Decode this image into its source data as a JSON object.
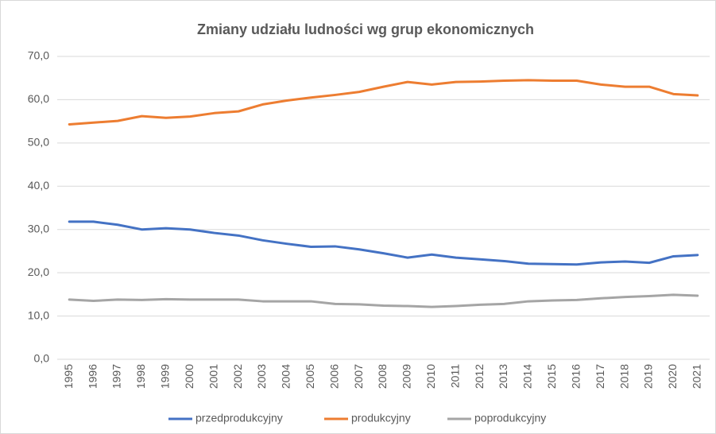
{
  "chart_data": {
    "type": "line",
    "title": "Zmiany udziału ludności wg grup ekonomicznych",
    "categories": [
      "1995",
      "1996",
      "1997",
      "1998",
      "1999",
      "2000",
      "2001",
      "2002",
      "2003",
      "2004",
      "2005",
      "2006",
      "2007",
      "2008",
      "2009",
      "2010",
      "2011",
      "2012",
      "2013",
      "2014",
      "2015",
      "2016",
      "2017",
      "2018",
      "2019",
      "2020",
      "2021"
    ],
    "series": [
      {
        "name": "przedprodukcyjny",
        "color": "#4472c4",
        "values": [
          31.8,
          31.8,
          31.1,
          30.0,
          30.3,
          30.0,
          29.2,
          28.6,
          27.5,
          26.7,
          26.0,
          26.1,
          25.4,
          24.5,
          23.5,
          24.2,
          23.5,
          23.1,
          22.7,
          22.1,
          22.0,
          21.9,
          22.4,
          22.6,
          22.3,
          23.8,
          24.1
        ]
      },
      {
        "name": "produkcyjny",
        "color": "#ed7d31",
        "values": [
          54.3,
          54.7,
          55.1,
          56.2,
          55.8,
          56.1,
          56.9,
          57.3,
          58.9,
          59.8,
          60.5,
          61.1,
          61.8,
          63.0,
          64.1,
          63.5,
          64.1,
          64.2,
          64.4,
          64.5,
          64.4,
          64.4,
          63.5,
          63.0,
          63.0,
          61.3,
          61.0
        ]
      },
      {
        "name": "poprodukcyjny",
        "color": "#a5a5a5",
        "values": [
          13.8,
          13.5,
          13.8,
          13.7,
          13.9,
          13.8,
          13.8,
          13.8,
          13.4,
          13.4,
          13.4,
          12.8,
          12.7,
          12.4,
          12.3,
          12.1,
          12.3,
          12.6,
          12.8,
          13.4,
          13.6,
          13.7,
          14.1,
          14.4,
          14.6,
          14.9,
          14.7
        ]
      }
    ],
    "ylim": [
      0,
      70
    ],
    "yticks": [
      {
        "value": 0,
        "label": "0,0"
      },
      {
        "value": 10,
        "label": "10,0"
      },
      {
        "value": 20,
        "label": "20,0"
      },
      {
        "value": 30,
        "label": "30,0"
      },
      {
        "value": 40,
        "label": "40,0"
      },
      {
        "value": 50,
        "label": "50,0"
      },
      {
        "value": 60,
        "label": "60,0"
      },
      {
        "value": 70,
        "label": "70,0"
      }
    ],
    "grid": true,
    "legend": "bottom"
  }
}
